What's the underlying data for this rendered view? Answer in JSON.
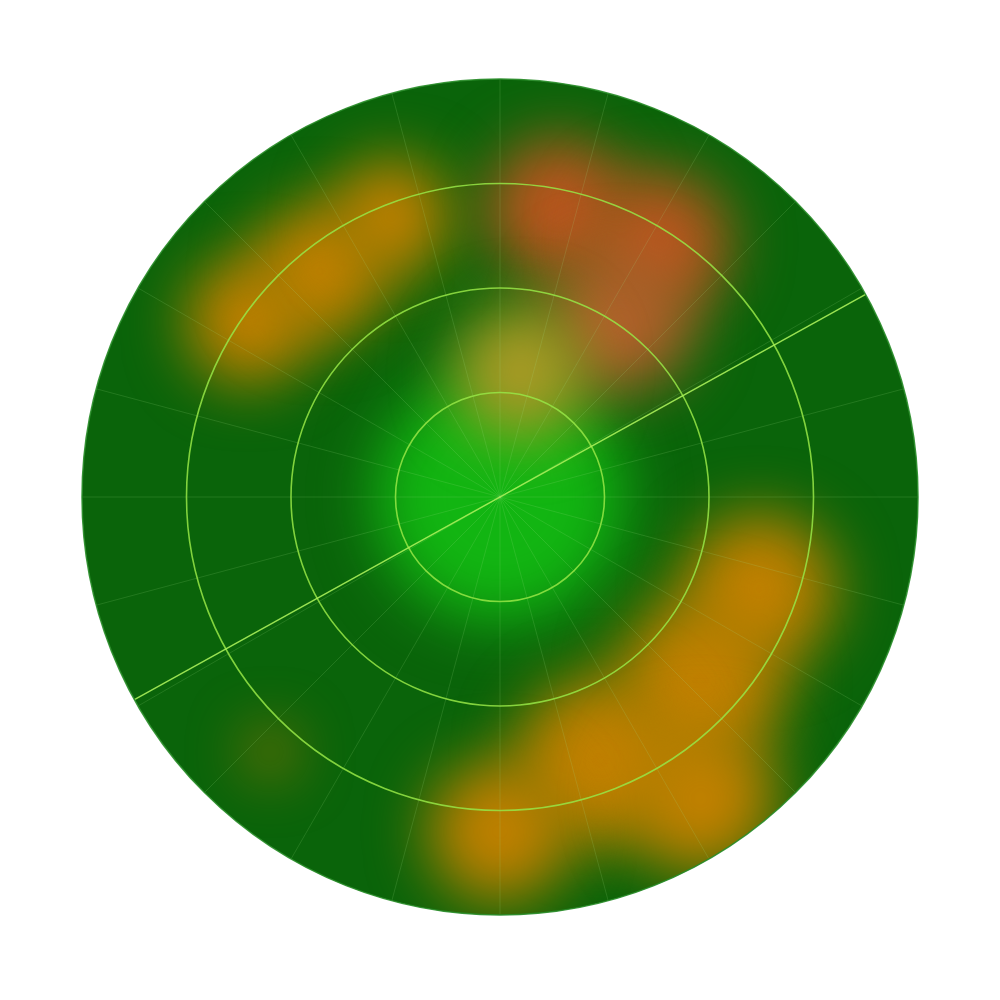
{
  "chart_data": {
    "type": "polar_heatmap",
    "color": "#0a640a",
    "xlim": [
      -1,
      1
    ],
    "ylim": [
      -1,
      1
    ],
    "tick_labels": false,
    "grid": false,
    "rings": [
      0.25,
      0.5,
      0.75
    ],
    "spokes": 24,
    "sweep_angle": 29,
    "x": [
      0,
      -0.6,
      -0.43,
      -0.26,
      0.14,
      0.38,
      0.29,
      0.05,
      0.62,
      0.48,
      0.24,
      0.0,
      0.48,
      -0.55
    ],
    "y": [
      0,
      0.42,
      0.54,
      0.67,
      0.69,
      0.61,
      0.42,
      0.3,
      -0.22,
      -0.44,
      -0.63,
      -0.8,
      -0.72,
      -0.61
    ],
    "sizes": [
      0.3,
      0.15,
      0.16,
      0.14,
      0.17,
      0.17,
      0.17,
      0.16,
      0.18,
      0.2,
      0.2,
      0.17,
      0.18,
      0.05
    ],
    "colors": [
      "#12b512",
      "#c08000",
      "#c08000",
      "#c08000",
      "#b8561e",
      "#b8561e",
      "#b0602a",
      "#a89a25",
      "#c08000",
      "#c08000",
      "#c08000",
      "#c08000",
      "#c08000",
      "#c07800"
    ]
  }
}
